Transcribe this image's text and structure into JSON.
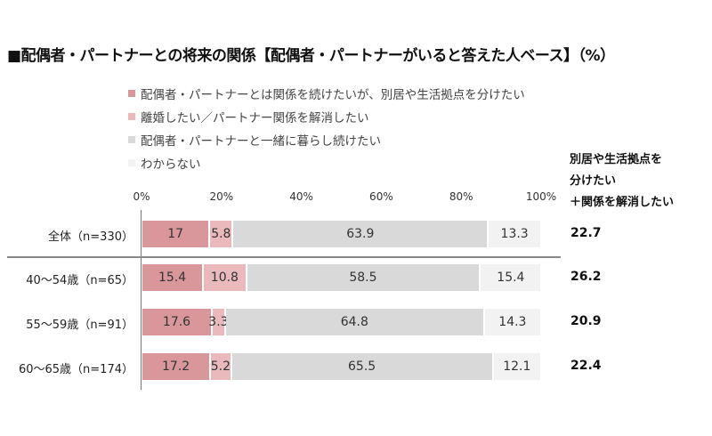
{
  "chart_data": {
    "type": "bar",
    "orientation": "horizontal-stacked-100",
    "title": "■配偶者・パートナーとの将来の関係【配偶者・パートナーがいると答えた人ベース】（%）",
    "xlim": [
      0,
      100
    ],
    "ticks": [
      "0%",
      "20%",
      "40%",
      "60%",
      "80%",
      "100%"
    ],
    "series_names": [
      "配偶者・パートナーとは関係を続けたいが、別居や生活拠点を分けたい",
      "離婚したい／パートナー関係を解消したい",
      "配偶者・パートナーと一緒に暮らし続けたい",
      "わからない"
    ],
    "colors": [
      "#d9979b",
      "#e9b9bb",
      "#d9d9d9",
      "#f2f2f2"
    ],
    "categories": [
      "全体（n=330）",
      "40～54歳（n=65）",
      "55～59歳（n=91）",
      "60～65歳（n=174）"
    ],
    "values": [
      [
        17.0,
        5.8,
        63.9,
        13.3
      ],
      [
        15.4,
        10.8,
        58.5,
        15.4
      ],
      [
        17.6,
        3.3,
        64.8,
        14.3
      ],
      [
        17.2,
        5.2,
        65.5,
        12.1
      ]
    ],
    "side_header": [
      "別居や生活拠点を",
      "分けたい",
      "＋関係を解消したい"
    ],
    "side_values": [
      "22.7",
      "26.2",
      "20.9",
      "22.4"
    ]
  }
}
